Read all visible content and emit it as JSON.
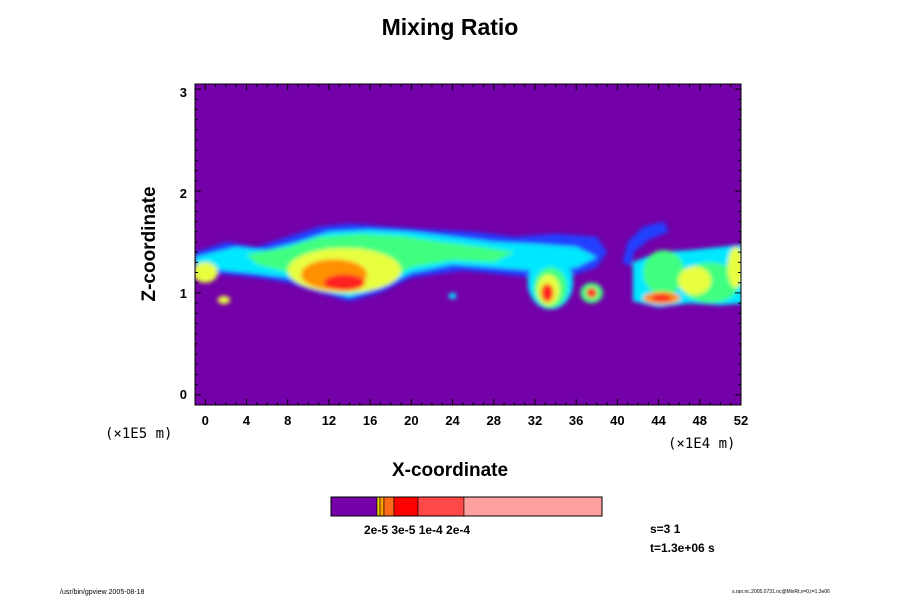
{
  "chart_data": {
    "type": "heatmap",
    "title": "Mixing Ratio",
    "xlabel": "X-coordinate",
    "ylabel": "Z-coordinate",
    "x_scale_label": "(×1E4 m)",
    "y_scale_label": "(×1E5 m)",
    "x_ticks": [
      "0",
      "4",
      "8",
      "12",
      "16",
      "20",
      "24",
      "28",
      "32",
      "36",
      "40",
      "44",
      "48",
      "52"
    ],
    "y_ticks": [
      "0",
      "1",
      "2",
      "3"
    ],
    "xlim": [
      -1,
      52
    ],
    "ylim": [
      -0.1,
      3.05
    ],
    "colorbar": {
      "colors": [
        "#7300a8",
        "#e8d000",
        "#ff9a00",
        "#ff6a18",
        "#ff0000",
        "#ff4848",
        "#ffa0a0"
      ],
      "label": "2e-5 3e-5 1e-4 2e-4"
    },
    "features": [
      {
        "name": "main plume",
        "x_range": [
          0,
          39
        ],
        "z_range": [
          0.9,
          1.68
        ],
        "peak_x": 14,
        "peak_z": 1.1
      },
      {
        "name": "cell",
        "x_range": [
          31.5,
          35.5
        ],
        "z_range": [
          0.85,
          1.35
        ],
        "peak_x": 33.5,
        "peak_z": 1.0
      },
      {
        "name": "cell",
        "x_range": [
          36.5,
          38.5
        ],
        "z_range": [
          0.93,
          1.1
        ],
        "peak_x": 37.5,
        "peak_z": 1.0
      },
      {
        "name": "curl",
        "x_range": [
          40,
          45
        ],
        "z_range": [
          1.25,
          1.7
        ],
        "peak_x": 42.5,
        "peak_z": 1.55
      },
      {
        "name": "right plume",
        "x_range": [
          41,
          52
        ],
        "z_range": [
          0.88,
          1.45
        ],
        "peak_x": 44,
        "peak_z": 0.95
      }
    ]
  },
  "info": {
    "step": "s=3 1",
    "time": "t=1.3e+06 s"
  },
  "footer": {
    "left": "/usr/bin/gpview 2005-08-18",
    "right": "s.ran.nc.2005.0731.nc@MixRt,x=0,t=1.3e06"
  }
}
